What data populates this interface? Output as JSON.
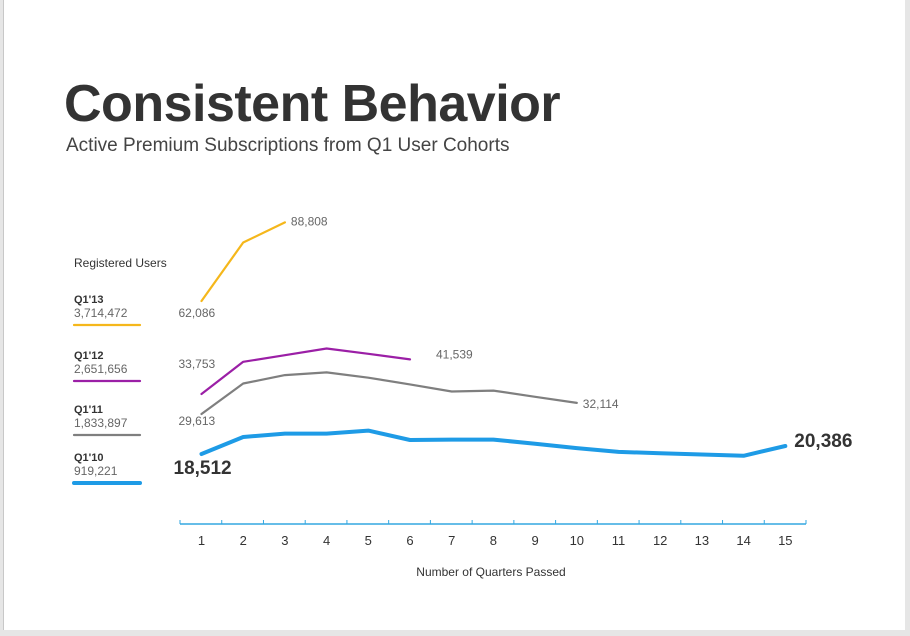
{
  "title": "Consistent Behavior",
  "subtitle": "Active Premium Subscriptions from Q1 User Cohorts",
  "legend_title": "Registered Users",
  "colors": {
    "q1_13": "#f5b71b",
    "q1_12": "#9b1fa6",
    "q1_11": "#7f7f7f",
    "q1_10": "#1e9be6",
    "axis": "#33a7e0"
  },
  "chart_data": {
    "type": "line",
    "xlabel": "Number of Quarters Passed",
    "ylabel": "",
    "x": [
      1,
      2,
      3,
      4,
      5,
      6,
      7,
      8,
      9,
      10,
      11,
      12,
      13,
      14,
      15
    ],
    "xlim": [
      0.5,
      15.5
    ],
    "ylim": [
      0,
      100000
    ],
    "grid": false,
    "legend_position": "left",
    "series": [
      {
        "name": "Q1'13",
        "registered_users": "3,714,472",
        "color": "#f5b71b",
        "x": [
          1,
          2,
          3
        ],
        "values": [
          62086,
          82000,
          88808
        ],
        "labels": [
          {
            "x": 1,
            "text": "62,086"
          },
          {
            "x": 3,
            "text": "88,808"
          }
        ]
      },
      {
        "name": "Q1'12",
        "registered_users": "2,651,656",
        "color": "#9b1fa6",
        "x": [
          1,
          2,
          3,
          4,
          5,
          6
        ],
        "values": [
          33753,
          41000,
          42500,
          44000,
          42800,
          41539
        ],
        "labels": [
          {
            "x": 1,
            "text": "33,753"
          },
          {
            "x": 6,
            "text": "41,539"
          }
        ]
      },
      {
        "name": "Q1'11",
        "registered_users": "1,833,897",
        "color": "#7f7f7f",
        "x": [
          1,
          2,
          3,
          4,
          5,
          6,
          7,
          8,
          9,
          10
        ],
        "values": [
          29613,
          36500,
          38400,
          39000,
          37800,
          36300,
          34700,
          34900,
          33500,
          32114
        ],
        "labels": [
          {
            "x": 1,
            "text": "29,613"
          },
          {
            "x": 10,
            "text": "32,114"
          }
        ]
      },
      {
        "name": "Q1'10",
        "registered_users": "919,221",
        "color": "#1e9be6",
        "x": [
          1,
          2,
          3,
          4,
          5,
          6,
          7,
          8,
          9,
          10,
          11,
          12,
          13,
          14,
          15
        ],
        "values": [
          18512,
          22500,
          23300,
          23300,
          24000,
          21800,
          21900,
          21900,
          20900,
          19900,
          19000,
          18700,
          18400,
          18100,
          20386
        ],
        "labels": [
          {
            "x": 1,
            "text": "18,512"
          },
          {
            "x": 15,
            "text": "20,386"
          }
        ]
      }
    ]
  }
}
